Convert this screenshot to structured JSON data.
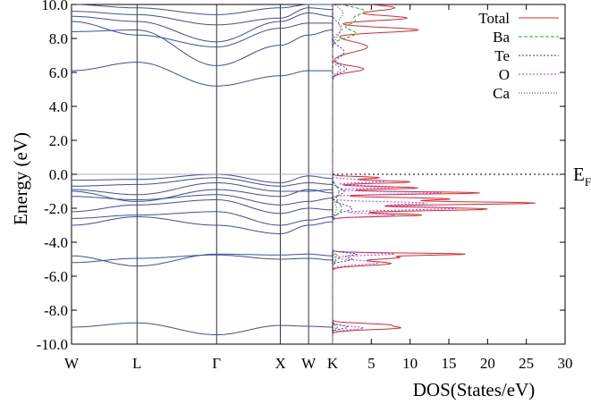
{
  "chart_data": [
    {
      "type": "line",
      "title": "",
      "xlabel": "",
      "ylabel": "Energy (eV)",
      "ylim": [
        -10.0,
        10.0
      ],
      "y_ticks": [
        "10.0",
        "8.0",
        "6.0",
        "4.0",
        "2.0",
        "0.0",
        "-2.0",
        "-4.0",
        "-6.0",
        "-8.0",
        "-10.0"
      ],
      "k_path": [
        "W",
        "L",
        "Γ",
        "X",
        "W",
        "K"
      ],
      "k_positions": [
        0,
        0.79,
        1.75,
        2.52,
        2.86,
        3.15
      ],
      "fermi_level_label": "E",
      "fermi_level_subscript": "F",
      "fermi_level": 0.0,
      "band_color": "#3a4fa8",
      "bands": [
        {
          "name": "",
          "y": [
            -9.0,
            -8.75,
            -9.45,
            -8.9,
            -8.95,
            -9.0
          ]
        },
        {
          "name": "",
          "y": [
            -5.2,
            -4.95,
            -4.75,
            -5.0,
            -4.95,
            -5.05
          ]
        },
        {
          "name": "",
          "y": [
            -4.8,
            -5.4,
            -4.7,
            -4.75,
            -4.7,
            -4.8
          ]
        },
        {
          "name": "",
          "y": [
            -3.0,
            -2.5,
            -3.0,
            -3.5,
            -3.0,
            -2.8
          ]
        },
        {
          "name": "",
          "y": [
            -2.6,
            -2.4,
            -2.2,
            -3.0,
            -2.7,
            -2.5
          ]
        },
        {
          "name": "",
          "y": [
            -2.2,
            -1.8,
            -1.5,
            -2.3,
            -2.0,
            -2.1
          ]
        },
        {
          "name": "",
          "y": [
            -1.3,
            -1.5,
            -1.2,
            -1.8,
            -1.6,
            -1.4
          ]
        },
        {
          "name": "",
          "y": [
            -1.0,
            -1.6,
            -0.9,
            -1.3,
            -0.9,
            -1.1
          ]
        },
        {
          "name": "",
          "y": [
            -0.9,
            -1.2,
            -0.5,
            -1.0,
            -1.0,
            -0.9
          ]
        },
        {
          "name": "",
          "y": [
            -0.7,
            -0.6,
            -0.2,
            -0.7,
            -0.5,
            -0.6
          ]
        },
        {
          "name": "",
          "y": [
            -0.35,
            -0.3,
            0.0,
            -0.5,
            -0.1,
            -0.25
          ]
        },
        {
          "name": "",
          "y": [
            6.1,
            6.6,
            5.2,
            5.8,
            6.1,
            6.1
          ]
        },
        {
          "name": "",
          "y": [
            8.4,
            8.5,
            6.4,
            7.6,
            8.2,
            8.5
          ]
        },
        {
          "name": "",
          "y": [
            9.0,
            8.2,
            7.5,
            8.6,
            8.9,
            8.9
          ]
        },
        {
          "name": "",
          "y": [
            9.3,
            9.0,
            7.8,
            9.0,
            9.5,
            9.3
          ]
        },
        {
          "name": "",
          "y": [
            9.6,
            9.4,
            8.8,
            9.2,
            9.8,
            9.7
          ]
        },
        {
          "name": "",
          "y": [
            10.0,
            9.8,
            9.4,
            9.8,
            10.0,
            10.0
          ]
        }
      ]
    },
    {
      "type": "line",
      "title": "",
      "xlabel": "DOS(States/eV)",
      "ylabel": "",
      "xlim": [
        0,
        30
      ],
      "ylim": [
        -10.0,
        10.0
      ],
      "x_ticks": [
        "K",
        "5",
        "10",
        "15",
        "20",
        "25",
        "30"
      ],
      "legend": "top-right",
      "series": [
        {
          "name": "Total",
          "color": "#e8272c",
          "dash": "solid",
          "peaks": [
            [
              -9.05,
              8.5,
              0.1
            ],
            [
              -8.85,
              6.0,
              0.08
            ],
            [
              -5.25,
              7.5,
              0.12
            ],
            [
              -4.9,
              8.5,
              0.1
            ],
            [
              -4.7,
              16.0,
              0.06
            ],
            [
              -2.4,
              11.5,
              0.08
            ],
            [
              -2.05,
              20.0,
              0.1
            ],
            [
              -1.7,
              26.0,
              0.08
            ],
            [
              -1.45,
              15.0,
              0.08
            ],
            [
              -1.1,
              19.0,
              0.07
            ],
            [
              -0.8,
              11.0,
              0.07
            ],
            [
              -0.45,
              10.0,
              0.08
            ],
            [
              -0.2,
              6.0,
              0.06
            ],
            [
              6.2,
              4.0,
              0.18
            ],
            [
              7.5,
              4.5,
              0.3
            ],
            [
              8.5,
              11.0,
              0.15
            ],
            [
              9.2,
              9.5,
              0.15
            ],
            [
              9.8,
              8.0,
              0.2
            ]
          ]
        },
        {
          "name": "Ba",
          "color": "#2fa52f",
          "dash": "4,2",
          "peaks": [
            [
              -9.0,
              0.6,
              0.12
            ],
            [
              -4.9,
              0.9,
              0.15
            ],
            [
              -2.0,
              1.2,
              0.3
            ],
            [
              -1.0,
              0.8,
              0.3
            ],
            [
              8.3,
              3.0,
              0.25
            ],
            [
              9.0,
              2.6,
              0.2
            ],
            [
              9.6,
              4.2,
              0.25
            ]
          ]
        },
        {
          "name": "Te",
          "color": "#2b36c8",
          "dash": "2,2",
          "peaks": [
            [
              -9.0,
              2.0,
              0.1
            ],
            [
              -5.0,
              2.5,
              0.12
            ],
            [
              -4.7,
              3.0,
              0.08
            ],
            [
              -2.0,
              2.5,
              0.2
            ],
            [
              -1.0,
              1.5,
              0.2
            ],
            [
              6.2,
              1.8,
              0.2
            ],
            [
              7.2,
              1.5,
              0.3
            ]
          ]
        },
        {
          "name": "O",
          "color": "#c23ad0",
          "dash": "2,2",
          "peaks": [
            [
              -9.05,
              4.0,
              0.1
            ],
            [
              -5.2,
              6.0,
              0.12
            ],
            [
              -4.7,
              8.0,
              0.07
            ],
            [
              -2.4,
              8.0,
              0.08
            ],
            [
              -2.0,
              16.0,
              0.1
            ],
            [
              -1.7,
              12.0,
              0.08
            ],
            [
              -1.1,
              14.0,
              0.07
            ],
            [
              -0.75,
              8.0,
              0.07
            ],
            [
              -0.4,
              7.0,
              0.08
            ],
            [
              6.2,
              1.0,
              0.2
            ],
            [
              8.6,
              1.2,
              0.3
            ]
          ]
        },
        {
          "name": "Ca",
          "color": "#1a5e2a",
          "dash": "1,2",
          "peaks": [
            [
              -9.0,
              0.3,
              0.15
            ],
            [
              -5.0,
              0.4,
              0.2
            ],
            [
              -2.0,
              0.5,
              0.3
            ],
            [
              8.5,
              1.0,
              0.4
            ],
            [
              9.5,
              1.3,
              0.3
            ]
          ]
        }
      ]
    }
  ]
}
